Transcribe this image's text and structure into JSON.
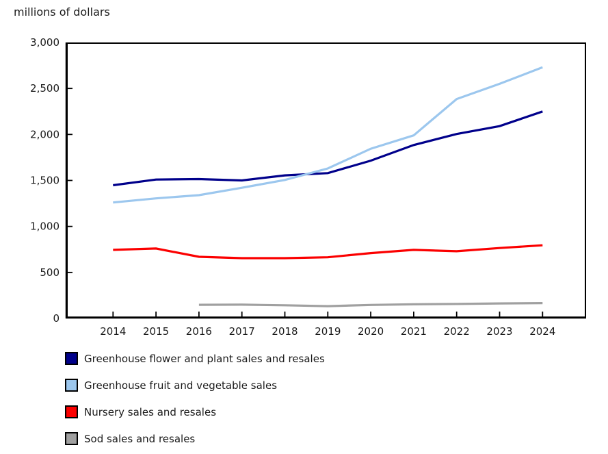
{
  "chart_data": {
    "type": "line",
    "title": "millions of dollars",
    "categories": [
      2014,
      2015,
      2016,
      2017,
      2018,
      2019,
      2020,
      2021,
      2022,
      2023,
      2024
    ],
    "xticks": [
      "2014",
      "2015",
      "2016",
      "2017",
      "2018",
      "2019",
      "2020",
      "2021",
      "2022",
      "2023",
      "2024"
    ],
    "yticks": [
      "0",
      "500",
      "1,000",
      "1,500",
      "2,000",
      "2,500",
      "3,000"
    ],
    "ytick_values": [
      0,
      500,
      1000,
      1500,
      2000,
      2500,
      3000
    ],
    "ylim": [
      0,
      3000
    ],
    "grid": false,
    "legend_position": "bottom-left",
    "axis_color": "#000000",
    "text_color": "#1a1a1a",
    "series": [
      {
        "name": "Greenhouse flower and plant sales and resales",
        "color": "#00008B",
        "values": [
          1448,
          1510,
          1515,
          1500,
          1555,
          1580,
          1715,
          1885,
          2005,
          2090,
          2250
        ]
      },
      {
        "name": "Greenhouse fruit and vegetable sales",
        "color": "#9CC7EE",
        "values": [
          1260,
          1305,
          1340,
          1420,
          1505,
          1630,
          1845,
          1990,
          2385,
          2550,
          2730
        ]
      },
      {
        "name": "Nursery sales and resales",
        "color": "#FB0000",
        "values": [
          745,
          760,
          670,
          655,
          655,
          665,
          710,
          745,
          730,
          765,
          795
        ]
      },
      {
        "name": "Sod sales and resales",
        "color": "#A0A0A0",
        "values": [
          null,
          null,
          148,
          150,
          143,
          133,
          147,
          153,
          157,
          163,
          167
        ]
      }
    ]
  }
}
